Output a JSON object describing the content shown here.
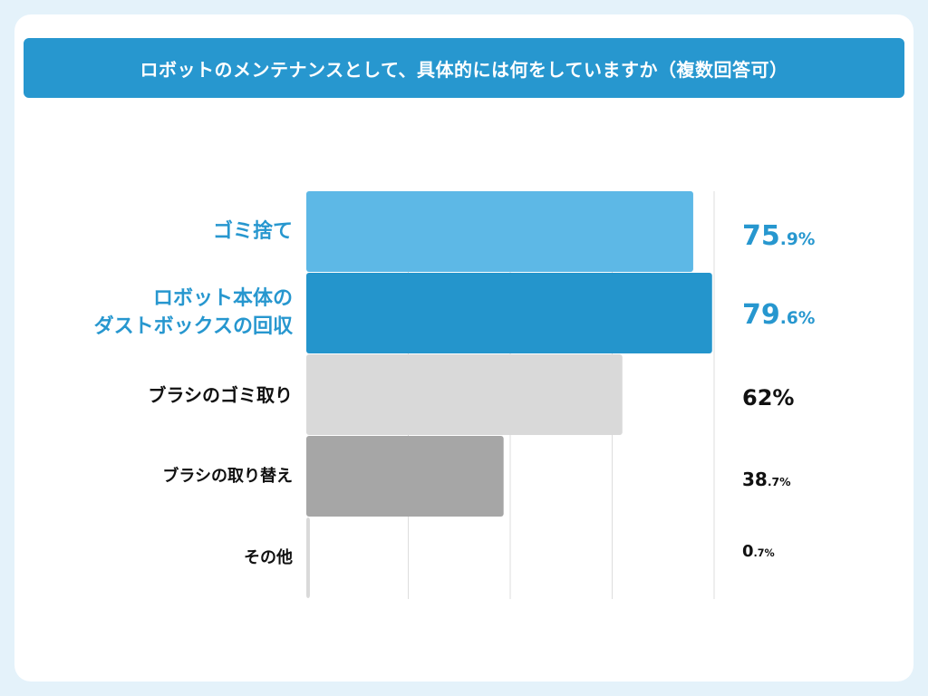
{
  "title": "ロボットのメンテナンスとして、具体的には何をしていますか（複数回答可）",
  "colors": {
    "page_background": "#e4f2fa",
    "card": "#ffffff",
    "title_bar": "#2797cf",
    "highlight_text": "#2797cf",
    "default_text": "#111111",
    "gridline": "#dddddd"
  },
  "chart_data": {
    "type": "bar",
    "orientation": "horizontal",
    "title": "ロボットのメンテナンスとして、具体的には何をしていますか（複数回答可）",
    "xlim": [
      0,
      80
    ],
    "grid": true,
    "categories": [
      "ゴミ捨て",
      "ロボット本体の\nダストボックスの回収",
      "ブラシのゴミ取り",
      "ブラシの取り替え",
      "その他"
    ],
    "values": [
      75.9,
      79.6,
      62,
      38.7,
      0.7
    ],
    "value_labels": [
      {
        "main": "75",
        "dec": ".9%"
      },
      {
        "main": "79",
        "dec": ".6%"
      },
      {
        "main": "62%",
        "dec": ""
      },
      {
        "main": "38",
        "dec": ".7%"
      },
      {
        "main": "0",
        "dec": ".7%"
      }
    ],
    "bar_colors": [
      "#5db8e6",
      "#2495cc",
      "#d9d9d9",
      "#a6a6a6",
      "#d9d9d9"
    ],
    "label_colors": [
      "#2797cf",
      "#2797cf",
      "#111111",
      "#111111",
      "#111111"
    ]
  }
}
